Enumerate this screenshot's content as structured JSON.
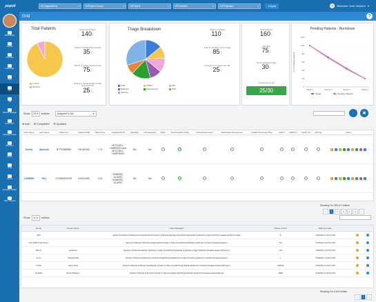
{
  "topbar": {
    "logo": "populi",
    "filters": [
      "All Organizations",
      "All Region Groups",
      "All Payers",
      "All Practices",
      "All Physicians"
    ],
    "apply_label": "Apply",
    "welcome": "Welcome John Jackson"
  },
  "sidebar": {
    "items": [
      {
        "label": "Bikes Board",
        "active": false
      },
      {
        "label": "Insights",
        "active": false
      },
      {
        "label": "Summary",
        "active": false
      },
      {
        "label": "Case Gaps",
        "active": false
      },
      {
        "label": "TCM",
        "active": false
      },
      {
        "label": "Grid",
        "active": true
      },
      {
        "label": "CM",
        "active": false
      },
      {
        "label": "Referral Manager",
        "active": false
      },
      {
        "label": "Score Card",
        "active": false
      },
      {
        "label": "Message Center",
        "active": false
      },
      {
        "label": "Members",
        "active": false
      },
      {
        "label": "Clinics",
        "active": false
      },
      {
        "label": "Vitals",
        "active": false
      },
      {
        "label": "Sports",
        "active": false
      },
      {
        "label": "Campaign Builder",
        "active": false
      },
      {
        "label": "Help / Support",
        "active": false
      }
    ]
  },
  "header": {
    "title": "Grid",
    "help": "?"
  },
  "total_patients": {
    "title": "Total Patients",
    "legend": [
      "In Grid",
      "Off Grid"
    ],
    "colors": [
      "#f5c84c",
      "#f0a8d8"
    ],
    "stats": [
      {
        "label": "Goal in # of HCFs",
        "value": "140",
        "arrow": "↑",
        "dir": "up"
      },
      {
        "label": "Total # of Initial Assessments",
        "value": "35",
        "arrow": "↑",
        "dir": "up"
      },
      {
        "label": "Total # of Triage Assessments",
        "value": "75",
        "arrow": "↑",
        "dir": "up"
      },
      {
        "label": "Total # of Social Health Profile Assessments",
        "value": "25",
        "arrow": "↑",
        "dir": "up"
      }
    ],
    "pie": [
      {
        "label": "In Grid",
        "share": 0.93
      },
      {
        "label": "Off Grid",
        "share": 0.07
      }
    ]
  },
  "triage": {
    "title": "Triage Breakdown",
    "legend": [
      "CAD",
      "COPD",
      "afib",
      "Diabetes",
      "Hypertension",
      "CHF",
      "Asthma"
    ],
    "colors": [
      "#3b7dd8",
      "#f5c84c",
      "#f0a8d8",
      "#9b59b6",
      "#2ca02c",
      "#e8833a",
      "#7fb3e8"
    ],
    "pie": [
      {
        "label": "CAD",
        "share": 0.14
      },
      {
        "label": "COPD",
        "share": 0.1
      },
      {
        "label": "afib",
        "share": 0.12
      },
      {
        "label": "Diabetes",
        "share": 0.1
      },
      {
        "label": "Hypertension",
        "share": 0.16
      },
      {
        "label": "CHF",
        "share": 0.08
      },
      {
        "label": "Asthma",
        "share": 0.3
      }
    ],
    "stats": [
      {
        "label": "Total # of Triages",
        "value": "110",
        "arrow": "↑",
        "dir": "up"
      },
      {
        "label": "Total # members yet to triage",
        "value": "85",
        "arrow": "↑",
        "dir": "up"
      },
      {
        "label": "Average # of triages per day",
        "value": "25",
        "arrow": "↑",
        "dir": "up"
      }
    ]
  },
  "summary": {
    "stats": [
      {
        "label": "Total Patients",
        "value": "160",
        "arrow": "↑",
        "dir": "up"
      },
      {
        "label": "Pending",
        "value": "75",
        "arrow": "↓",
        "dir": "dn"
      },
      {
        "label": "To be contacted today",
        "value": "30",
        "arrow": "↑",
        "dir": "up"
      }
    ],
    "completed_label": "Completed so far",
    "completed_value": "25/30"
  },
  "burndown": {
    "title": "Pending Patients - Burndown",
    "ylabel": "% of pending patients",
    "legend": [
      "Target",
      "Pending Patients"
    ],
    "colors": [
      "#9b59b6",
      "#e06aa0"
    ]
  },
  "chart_data": {
    "type": "line",
    "title": "Pending Patients - Burndown",
    "xlabel": "",
    "ylabel": "% of pending patients",
    "categories": [
      "Week 1",
      "Week 2",
      "Week 3",
      "Week 4"
    ],
    "yticks": [
      "0",
      "20",
      "40",
      "60",
      "80",
      "100",
      "120"
    ],
    "ylim": [
      0,
      120
    ],
    "series": [
      {
        "name": "Target",
        "values": [
          100,
          72,
          45,
          20
        ]
      },
      {
        "name": "Pending Patients",
        "values": [
          100,
          70,
          43,
          20
        ]
      }
    ],
    "legend_position": "bottom"
  },
  "grid": {
    "show_label": "Show",
    "show_value": "25",
    "entries_label": "entries",
    "assigned_value": "Assigned to Me",
    "tags": [
      "Add",
      "Completed",
      "Updated"
    ],
    "columns": [
      "First Name",
      "Last Name",
      "Patient Id",
      "Patient DOB",
      "Risk Score",
      "Assigned PCP",
      "Eligibility",
      "CM assigned",
      "AWV",
      "Social health profile",
      "Initial Assessment",
      "Medication Assessment",
      "Health Promotion Plan",
      "GAD-7",
      "AUDIT-C",
      "DAST 10",
      "Asthma",
      "Action"
    ],
    "rows": [
      {
        "first": "Dorthy",
        "last": "Spurlock",
        "id": "2FT7K38E855",
        "dob": "09/18/1942",
        "risk": "1.74",
        "pcp": "MITCHELL, HARRISON and MITCHELL, HARRISON",
        "elig": "NA",
        "cm": "NA"
      },
      {
        "first": "CARMEN",
        "last": "HILL",
        "id": "2YG5MH9XG39",
        "dob": "01/01/1900",
        "risk": "0.00",
        "pcp": "RAMIREZ, ALVARO RAMIREZ, ALVARO",
        "elig": "NA",
        "cm": "NA"
      }
    ],
    "showing": "Showing 1 to 250 of 1 entries",
    "pages": [
      "<",
      "1",
      "2",
      "3",
      "4",
      "5",
      ">"
    ]
  },
  "groups": {
    "show_label": "Show",
    "show_value": "10",
    "entries_label": "entries",
    "columns": [
      "Group",
      "Group Owner",
      "Case Managers",
      "Patient Count",
      "Effective Date",
      "",
      ""
    ],
    "rows": [
      {
        "group": "SAP",
        "owner": "",
        "managers": "Santosh N.|Shweta S.|Mohammed Aiman|Preetha M.|Jordan G.|Prithviraj Rao|Vijay Kumar|Prithviraj Rao|Sai Jay|Dinesh G.|Vijay Kir|Infinite.evaluator.k|Charlie Douglas",
        "count": "8",
        "date": "7/29/2021 11:36:41 PM"
      },
      {
        "group": "UCLA360 Total Clinics",
        "owner": "",
        "managers": "Santosh N.|Shweta S.|Ravi Mendoza|Preetha M.|Jordan G.|Vijay Kumar|Prithviraj Rao|Sai Jay|Dinesh G.|Charlie Douglas|evaluator.k",
        "count": "711",
        "date": "7/29/2021 11:36:41 PM"
      },
      {
        "group": "MR pc",
        "owner": "marisha.p",
        "managers": "Santosh N.|Charlie Douglas|Sai Jay|Dinesh G.|Vijay Kumar|Prithviraj Rao|Sai Jay|Jordan G.|Vijay Kir|Charlie Douglas|evaluator.k|Shweta S.",
        "count": "701",
        "date": "7/29/2021 11:36:41 PM"
      },
      {
        "group": "sk dv",
        "owner": "Vinayak Patil",
        "managers": "Santosh N.|Shweta S.|Vijaykumar Jain|Aras Dong|Prithviraj Rao|Dinesh G.|Vijay Kumar|Sai Jay|Dinesh G.|Charlie Douglas|evaluator.k",
        "count": "1",
        "date": "7/29/2021 11:36:41 PM"
      },
      {
        "group": "UCMI",
        "owner": "rahul reddy",
        "managers": "Santosh N.|Shweta S.|Meriyal Yang|Shweta S.|Jordan G.|Vijay Kumar|Prithviraj Rao|Sai Jay|Dinesh G.|Charlie Douglas|evaluator.k|Shweta S.",
        "count": "136042",
        "date": "7/29/2021 11:36:41 PM"
      },
      {
        "group": "UI-ERN",
        "owner": "Olivia Taliaferro",
        "managers": "Santosh N.|Shweta S.|Preetha M.|Jordan G.|Vijay Kumar|Sai Jay|Prithviraj Rao|Sai Jay|Charlie Douglas|evaluator.k|Sai Jay",
        "count": "1808",
        "date": "7/29/2021 11:36:41 PM"
      }
    ],
    "showing": "Showing 1 to 6 of 6 entries",
    "pages": [
      "<",
      "1",
      ">"
    ]
  }
}
